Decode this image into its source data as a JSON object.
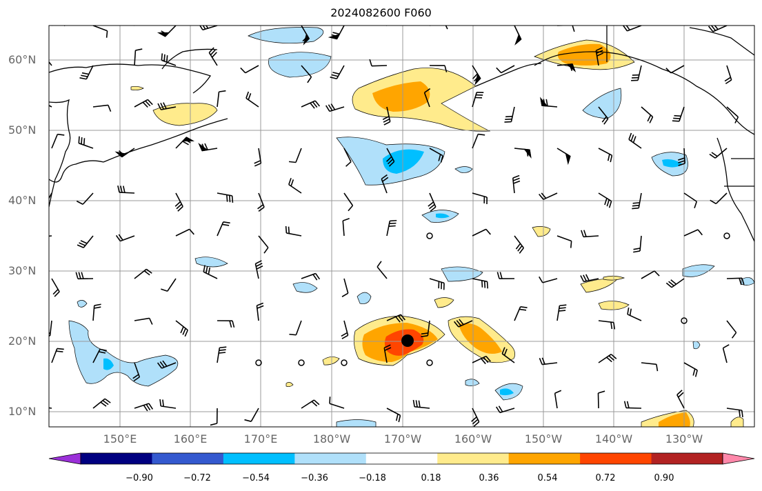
{
  "title": "2024082600 F060",
  "lat_labels": [
    "60°N",
    "50°N",
    "40°N",
    "30°N",
    "20°N",
    "10°N"
  ],
  "lon_labels": [
    "150°E",
    "160°E",
    "170°E",
    "180°W",
    "170°W",
    "160°W",
    "150°W",
    "140°W",
    "130°W"
  ],
  "colorbar": {
    "ticks": [
      "−0.90",
      "−0.72",
      "−0.54",
      "−0.36",
      "−0.18",
      "0.18",
      "0.36",
      "0.54",
      "0.72",
      "0.90"
    ],
    "colors": [
      "#9b30d9",
      "#000080",
      "#3459cf",
      "#00bfff",
      "#b0e0fa",
      "#ffffff",
      "#ffeb8c",
      "#ffa500",
      "#ff4500",
      "#b22222",
      "#ff88aa"
    ]
  },
  "field_colors": {
    "neg1": "#b0e0fa",
    "neg2": "#00bfff",
    "pos1": "#ffeb8c",
    "pos2": "#ffa500",
    "pos3": "#ff4500"
  }
}
